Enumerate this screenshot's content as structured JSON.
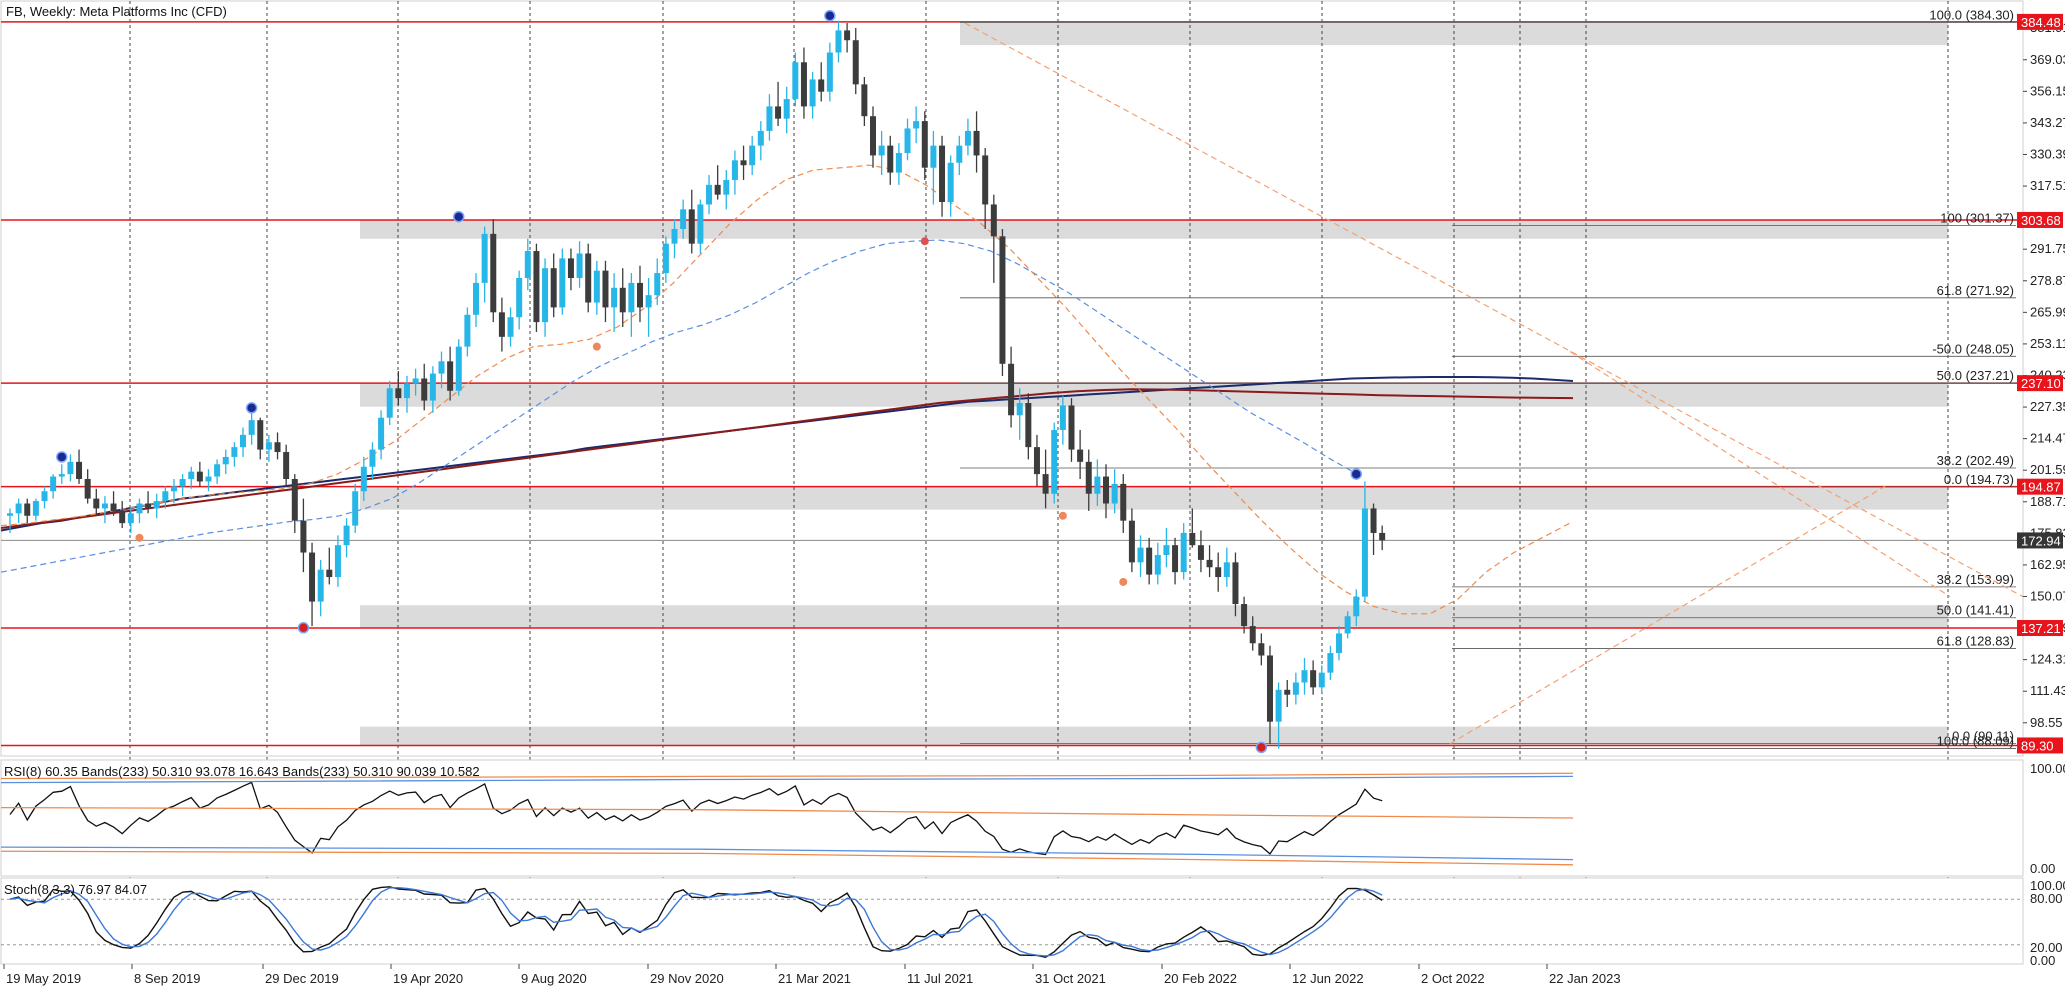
{
  "chart_data": {
    "type": "candlestick",
    "title": "FB, Weekly:  Meta Platforms Inc (CFD)",
    "x_tick_labels": [
      "19 May 2019",
      "8 Sep 2019",
      "29 Dec 2019",
      "19 Apr 2020",
      "9 Aug 2020",
      "29 Nov 2020",
      "21 Mar 2021",
      "11 Jul 2021",
      "31 Oct 2021",
      "20 Feb 2022",
      "12 Jun 2022",
      "2 Oct 2022",
      "22 Jan 2023"
    ],
    "y_tick_labels": [
      "381.91",
      "369.03",
      "356.15",
      "343.27",
      "330.39",
      "317.51",
      "291.75",
      "278.87",
      "265.99",
      "253.11",
      "240.23",
      "227.35",
      "214.47",
      "201.59",
      "188.71",
      "175.83",
      "162.95",
      "150.07",
      "137.19",
      "124.31",
      "111.43",
      "98.55"
    ],
    "ylim": [
      85,
      393
    ],
    "price_markers": [
      {
        "value": 384.48,
        "label": "384.48",
        "color": "#e8131b"
      },
      {
        "value": 303.68,
        "label": "303.68",
        "color": "#e8131b"
      },
      {
        "value": 237.1,
        "label": "237.10",
        "color": "#e8131b"
      },
      {
        "value": 194.87,
        "label": "194.87",
        "color": "#e8131b"
      },
      {
        "value": 172.94,
        "label": "172.94",
        "color": "#353535"
      },
      {
        "value": 137.21,
        "label": "137.21",
        "color": "#e8131b"
      },
      {
        "value": 89.3,
        "label": "89.30",
        "color": "#e8131b"
      }
    ],
    "horizontal_levels": [
      384.48,
      303.68,
      237.1,
      194.87,
      137.21,
      89.3
    ],
    "zones": [
      [
        375.0,
        384.48
      ],
      [
        296.0,
        303.68
      ],
      [
        227.5,
        237.1
      ],
      [
        185.5,
        194.87
      ],
      [
        137.21,
        146.5
      ],
      [
        89.3,
        97.0
      ]
    ],
    "fib_sets": [
      {
        "levels": [
          {
            "value": 384.3,
            "label": "100.0 (384.30)"
          },
          {
            "value": 271.92,
            "label": "61.8 (271.92)"
          },
          {
            "value": 237.21,
            "label": "50.0 (237.21)"
          },
          {
            "value": 202.49,
            "label": "38.2 (202.49)"
          },
          {
            "value": 90.11,
            "label": "0.0 (90.11)"
          }
        ]
      },
      {
        "levels": [
          {
            "value": 301.37,
            "label": "100 (301.37)"
          },
          {
            "value": 248.05,
            "label": "-50.0 (248.05)"
          },
          {
            "value": 194.73,
            "label": "0.0 (194.73)"
          },
          {
            "value": 153.99,
            "label": "38.2 (153.99)"
          },
          {
            "value": 141.41,
            "label": "50.0 (141.41)"
          },
          {
            "value": 128.83,
            "label": "61.8 (128.83)"
          },
          {
            "value": 88.09,
            "label": "100.0 (88.09)"
          }
        ]
      }
    ],
    "candles": [
      [
        183,
        186,
        176,
        184
      ],
      [
        184,
        190,
        180,
        188
      ],
      [
        188,
        190,
        180,
        183
      ],
      [
        183,
        190,
        181,
        189
      ],
      [
        189,
        195,
        186,
        193
      ],
      [
        193,
        200,
        190,
        199
      ],
      [
        199,
        204,
        196,
        200
      ],
      [
        200,
        208,
        197,
        205
      ],
      [
        205,
        210,
        196,
        198
      ],
      [
        198,
        202,
        188,
        190
      ],
      [
        190,
        194,
        183,
        186
      ],
      [
        186,
        191,
        180,
        188
      ],
      [
        188,
        193,
        183,
        185
      ],
      [
        185,
        189,
        178,
        180
      ],
      [
        180,
        186,
        176,
        184
      ],
      [
        184,
        190,
        180,
        188
      ],
      [
        188,
        193,
        184,
        186
      ],
      [
        186,
        192,
        182,
        189
      ],
      [
        189,
        195,
        186,
        193
      ],
      [
        193,
        198,
        188,
        195
      ],
      [
        195,
        200,
        191,
        198
      ],
      [
        198,
        203,
        194,
        201
      ],
      [
        201,
        205,
        195,
        197
      ],
      [
        197,
        202,
        193,
        199
      ],
      [
        199,
        206,
        196,
        204
      ],
      [
        204,
        210,
        200,
        207
      ],
      [
        207,
        213,
        203,
        211
      ],
      [
        211,
        219,
        207,
        216
      ],
      [
        216,
        225,
        212,
        222
      ],
      [
        222,
        223,
        206,
        210
      ],
      [
        210,
        216,
        205,
        213
      ],
      [
        213,
        217,
        206,
        209
      ],
      [
        209,
        212,
        195,
        198
      ],
      [
        198,
        200,
        176,
        181
      ],
      [
        181,
        190,
        160,
        168
      ],
      [
        168,
        172,
        138,
        148
      ],
      [
        148,
        165,
        142,
        161
      ],
      [
        161,
        170,
        155,
        158
      ],
      [
        158,
        175,
        154,
        171
      ],
      [
        171,
        182,
        166,
        179
      ],
      [
        179,
        196,
        176,
        193
      ],
      [
        193,
        207,
        189,
        203
      ],
      [
        203,
        213,
        198,
        210
      ],
      [
        210,
        226,
        206,
        223
      ],
      [
        223,
        238,
        220,
        235
      ],
      [
        235,
        242,
        228,
        231
      ],
      [
        231,
        240,
        225,
        237
      ],
      [
        237,
        243,
        232,
        239
      ],
      [
        239,
        245,
        226,
        230
      ],
      [
        230,
        244,
        225,
        241
      ],
      [
        241,
        250,
        235,
        246
      ],
      [
        246,
        252,
        230,
        234
      ],
      [
        234,
        255,
        232,
        252
      ],
      [
        252,
        268,
        248,
        265
      ],
      [
        265,
        282,
        260,
        278
      ],
      [
        278,
        301,
        270,
        298
      ],
      [
        298,
        304,
        262,
        266
      ],
      [
        266,
        272,
        250,
        256
      ],
      [
        256,
        268,
        252,
        264
      ],
      [
        264,
        283,
        259,
        280
      ],
      [
        280,
        296,
        275,
        291
      ],
      [
        291,
        294,
        258,
        262
      ],
      [
        262,
        288,
        256,
        284
      ],
      [
        284,
        290,
        264,
        268
      ],
      [
        268,
        292,
        265,
        288
      ],
      [
        288,
        292,
        275,
        280
      ],
      [
        280,
        295,
        276,
        290
      ],
      [
        290,
        294,
        266,
        270
      ],
      [
        270,
        287,
        265,
        283
      ],
      [
        283,
        287,
        262,
        268
      ],
      [
        268,
        282,
        258,
        276
      ],
      [
        276,
        284,
        260,
        266
      ],
      [
        266,
        282,
        256,
        278
      ],
      [
        278,
        285,
        262,
        268
      ],
      [
        268,
        280,
        256,
        273
      ],
      [
        273,
        288,
        269,
        282
      ],
      [
        282,
        297,
        278,
        294
      ],
      [
        294,
        304,
        288,
        300
      ],
      [
        300,
        312,
        296,
        308
      ],
      [
        308,
        316,
        290,
        294
      ],
      [
        294,
        312,
        290,
        310
      ],
      [
        310,
        322,
        306,
        318
      ],
      [
        318,
        326,
        312,
        314
      ],
      [
        314,
        324,
        308,
        320
      ],
      [
        320,
        332,
        314,
        328
      ],
      [
        328,
        334,
        320,
        326
      ],
      [
        326,
        338,
        322,
        334
      ],
      [
        334,
        344,
        328,
        340
      ],
      [
        340,
        355,
        336,
        350
      ],
      [
        350,
        360,
        342,
        345
      ],
      [
        345,
        358,
        339,
        353
      ],
      [
        353,
        372,
        350,
        368
      ],
      [
        368,
        374,
        345,
        350
      ],
      [
        350,
        364,
        345,
        361
      ],
      [
        361,
        368,
        352,
        356
      ],
      [
        356,
        376,
        352,
        372
      ],
      [
        372,
        385,
        368,
        381
      ],
      [
        381,
        384,
        372,
        377
      ],
      [
        377,
        382,
        355,
        359
      ],
      [
        359,
        362,
        342,
        346
      ],
      [
        346,
        350,
        325,
        330
      ],
      [
        330,
        340,
        322,
        334
      ],
      [
        334,
        338,
        318,
        323
      ],
      [
        323,
        335,
        318,
        331
      ],
      [
        331,
        345,
        328,
        341
      ],
      [
        341,
        350,
        335,
        344
      ],
      [
        344,
        348,
        320,
        325
      ],
      [
        325,
        340,
        310,
        334
      ],
      [
        334,
        338,
        305,
        311
      ],
      [
        311,
        330,
        305,
        327
      ],
      [
        327,
        338,
        322,
        334
      ],
      [
        334,
        345,
        330,
        340
      ],
      [
        340,
        348,
        323,
        330
      ],
      [
        330,
        333,
        300,
        310
      ],
      [
        310,
        314,
        278,
        297
      ],
      [
        297,
        300,
        240,
        245
      ],
      [
        245,
        252,
        219,
        224
      ],
      [
        224,
        235,
        214,
        229
      ],
      [
        229,
        233,
        206,
        211
      ],
      [
        211,
        216,
        195,
        200
      ],
      [
        200,
        210,
        186,
        192
      ],
      [
        192,
        221,
        188,
        218
      ],
      [
        218,
        232,
        212,
        228
      ],
      [
        228,
        231,
        205,
        210
      ],
      [
        210,
        218,
        198,
        205
      ],
      [
        205,
        210,
        185,
        192
      ],
      [
        192,
        206,
        187,
        199
      ],
      [
        199,
        204,
        182,
        188
      ],
      [
        188,
        202,
        184,
        196
      ],
      [
        196,
        200,
        176,
        181
      ],
      [
        181,
        186,
        160,
        164
      ],
      [
        164,
        175,
        158,
        170
      ],
      [
        170,
        174,
        155,
        159
      ],
      [
        159,
        172,
        155,
        167
      ],
      [
        167,
        178,
        162,
        171
      ],
      [
        171,
        174,
        155,
        160
      ],
      [
        160,
        180,
        157,
        176
      ],
      [
        176,
        186,
        170,
        171
      ],
      [
        171,
        177,
        160,
        165
      ],
      [
        165,
        171,
        158,
        162
      ],
      [
        162,
        168,
        152,
        158
      ],
      [
        158,
        170,
        154,
        164
      ],
      [
        164,
        168,
        142,
        147
      ],
      [
        147,
        150,
        135,
        138
      ],
      [
        138,
        142,
        128,
        131
      ],
      [
        131,
        135,
        122,
        126
      ],
      [
        126,
        130,
        90,
        99
      ],
      [
        99,
        115,
        88,
        112
      ],
      [
        112,
        116,
        105,
        110
      ],
      [
        110,
        119,
        106,
        115
      ],
      [
        115,
        125,
        110,
        120
      ],
      [
        120,
        124,
        110,
        113
      ],
      [
        113,
        122,
        111,
        119
      ],
      [
        119,
        130,
        116,
        127
      ],
      [
        127,
        138,
        124,
        135
      ],
      [
        135,
        144,
        133,
        142
      ],
      [
        142,
        153,
        138,
        150
      ],
      [
        150,
        197,
        148,
        186
      ],
      [
        186,
        188,
        167,
        176
      ],
      [
        176,
        179,
        169,
        173
      ]
    ],
    "series": [
      {
        "values": [
          177,
          178.5,
          180,
          181,
          182.5,
          184,
          185.5,
          187,
          188.5,
          190,
          191,
          192,
          193,
          194,
          195,
          196,
          197,
          198,
          199,
          200,
          201,
          202,
          203,
          204,
          205,
          206,
          207,
          208,
          209,
          210.5,
          211.5,
          212.5,
          213.5,
          214.5,
          215.5,
          216.5,
          217.5,
          218.5,
          219.5,
          220.5,
          221.5,
          222.5,
          223.5,
          224.5,
          225.5,
          226.5,
          227.5,
          228.5,
          229.5,
          230,
          230.5,
          231,
          231.5,
          232,
          232.5,
          233,
          233.5,
          234,
          234.5,
          235,
          235.5,
          236,
          236.5,
          237,
          237.5,
          238,
          238.5,
          239,
          239.2,
          239.4,
          239.5,
          239.6,
          239.6,
          239.6,
          239.5,
          239.3,
          239,
          238.5,
          238
        ]
      },
      {
        "values": [
          178,
          179.5,
          181,
          182.5,
          184,
          185.5,
          187,
          188.5,
          190,
          191.5,
          193,
          194.5,
          196,
          197.5,
          199,
          200.5,
          202,
          203.5,
          205,
          206.5,
          208,
          209.5,
          211,
          212.5,
          214,
          215.5,
          217,
          218.5,
          220,
          221.5,
          223,
          224.5,
          226,
          227.5,
          229,
          230,
          231,
          232,
          233,
          233.8,
          234.3,
          234.6,
          234.5,
          234.3,
          234,
          233.7,
          233.4,
          233.1,
          232.8,
          232.5,
          232.2,
          232,
          231.8,
          231.6,
          231.4,
          231.2,
          231.1,
          231
        ]
      },
      {
        "values": [
          160,
          162,
          164,
          166,
          168,
          170,
          172,
          174,
          176,
          177.5,
          179,
          180.5,
          181.5,
          183,
          186,
          190,
          196,
          203,
          210,
          217,
          224,
          231,
          238,
          244,
          249,
          254,
          258,
          261,
          265,
          270,
          276,
          282,
          287,
          291,
          294,
          295,
          295.5,
          294,
          291,
          286,
          280,
          274,
          267,
          260,
          253,
          246,
          239,
          232,
          225,
          219,
          213,
          206.5,
          200.5
        ]
      },
      {
        "values": [
          179,
          180,
          181.5,
          183,
          185,
          187,
          189,
          191,
          192,
          193,
          194,
          196,
          200,
          206,
          213,
          222,
          231,
          240,
          247,
          252,
          253,
          255,
          260,
          268,
          278,
          290,
          302,
          312,
          320,
          324,
          325,
          326,
          324,
          318,
          310,
          302,
          292,
          280,
          268,
          255,
          242,
          230,
          218,
          205,
          193,
          181,
          170,
          160,
          152,
          146,
          143,
          143,
          149,
          160,
          168,
          174,
          180
        ]
      }
    ],
    "rsi_legend": "RSI(8) 60.35 Bands(233) 50.310 93.078 16.643 Bands(233) 50.310 90.039 10.582",
    "rsi_ticks": [
      "100.00",
      "0.00"
    ],
    "stoch_legend": "Stoch(8,3,3) 76.97 84.07",
    "stoch_ticks": [
      "100.00",
      "80.00",
      "20.00",
      "0.00"
    ]
  }
}
